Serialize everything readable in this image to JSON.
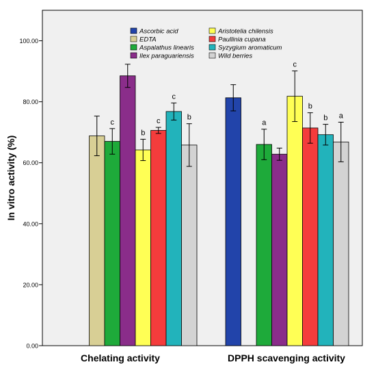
{
  "chart_data": {
    "type": "bar",
    "ylabel": "In vitro activity (%)",
    "ylim": [
      0,
      110
    ],
    "yticks": [
      "0.00",
      "20.00",
      "40.00",
      "60.00",
      "80.00",
      "100.00"
    ],
    "ytick_values": [
      0,
      20,
      40,
      60,
      80,
      100
    ],
    "grid": false,
    "legend_position": "top-right (2 columns)",
    "groups": [
      "Chelating activity",
      "DPPH scavenging activity"
    ],
    "series": [
      {
        "name": "Ascorbic acid",
        "color": "#2244aa",
        "values": [
          null,
          81.3
        ],
        "err": [
          null,
          4.3
        ],
        "labels": [
          "",
          ""
        ]
      },
      {
        "name": "EDTA",
        "color": "#d8cf95",
        "values": [
          68.8,
          null
        ],
        "err": [
          6.5,
          null
        ],
        "labels": [
          "",
          ""
        ]
      },
      {
        "name": "Aspalathus linearis",
        "color": "#1eaa3a",
        "values": [
          67.0,
          66.0
        ],
        "err": [
          4.2,
          5.0
        ],
        "labels": [
          "c",
          "a"
        ]
      },
      {
        "name": "Ilex paraguariensis",
        "color": "#8a2d8a",
        "values": [
          88.5,
          62.8
        ],
        "err": [
          3.8,
          2.0
        ],
        "labels": [
          "",
          ""
        ]
      },
      {
        "name": "Aristotelia chilensis",
        "color": "#ffff55",
        "values": [
          64.2,
          81.8
        ],
        "err": [
          3.5,
          8.3
        ],
        "labels": [
          "b",
          "c"
        ]
      },
      {
        "name": "Paullinia cupana",
        "color": "#f43c3c",
        "values": [
          70.6,
          71.4
        ],
        "err": [
          1.0,
          5.0
        ],
        "labels": [
          "c",
          "b"
        ]
      },
      {
        "name": "Syzygium aromaticum",
        "color": "#22b3bb",
        "values": [
          76.8,
          69.2
        ],
        "err": [
          2.8,
          3.4
        ],
        "labels": [
          "c",
          "b"
        ]
      },
      {
        "name": "Wild berries",
        "color": "#d3d3d3",
        "values": [
          65.8,
          66.8
        ],
        "err": [
          7.0,
          6.5
        ],
        "labels": [
          "b",
          "a"
        ]
      }
    ],
    "legend": {
      "left": [
        "Ascorbic acid",
        "EDTA",
        "Aspalathus linearis",
        "Ilex paraguariensis"
      ],
      "right": [
        "Aristotelia chilensis",
        "Paullinia cupana",
        "Syzygium aromaticum",
        "Wild berries"
      ]
    },
    "colors": {
      "plot_bg": "#f0f0f0",
      "axis": "#000000"
    }
  }
}
